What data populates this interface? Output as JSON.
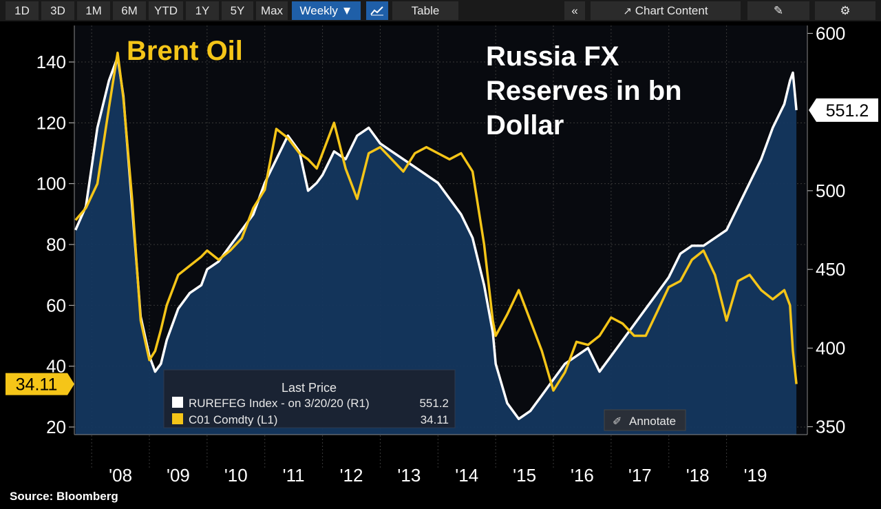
{
  "toolbar": {
    "ranges": [
      "1D",
      "3D",
      "1M",
      "6M",
      "YTD",
      "1Y",
      "5Y",
      "Max"
    ],
    "interval": "Weekly ▼",
    "table": "Table",
    "collapse": "«",
    "chart_content": "Chart Content",
    "edit_icon": "pencil-icon",
    "settings_icon": "gear-icon"
  },
  "annotate_label": "Annotate",
  "source": "Source:  Bloomberg",
  "colors": {
    "oil": "#f5c518",
    "reserves": "#ffffff",
    "fill": "#14375f",
    "background": "#000000"
  },
  "chart_data": {
    "type": "line",
    "labels": {
      "oil_title": "Brent Oil",
      "reserves_title": [
        "Russia FX",
        "Reserves in bn",
        "Dollar"
      ]
    },
    "x_ticks": [
      "'08",
      "'09",
      "'10",
      "'11",
      "'12",
      "'13",
      "'14",
      "'15",
      "'16",
      "'17",
      "'18",
      "'19"
    ],
    "xlim": [
      2007.7,
      2020.4
    ],
    "y_left": {
      "ticks": [
        20,
        40,
        60,
        80,
        100,
        120,
        140
      ],
      "range": [
        17.5,
        152
      ]
    },
    "y_right": {
      "ticks": [
        350,
        400,
        450,
        500,
        600
      ],
      "range": [
        345,
        605
      ]
    },
    "grid": true,
    "last_values": {
      "left": "34.11",
      "right": "551.2"
    },
    "legend": {
      "title": "Last Price",
      "entries": [
        {
          "name": "RUREFEG Index -   on 3/20/20  (R1)",
          "value": "551.2"
        },
        {
          "name": "C01 Comdty  (L1)",
          "value": "34.11"
        }
      ]
    },
    "series": [
      {
        "name": "RUREFEG Index",
        "axis": "right",
        "x": [
          2007.72,
          2007.9,
          2008.1,
          2008.3,
          2008.45,
          2008.55,
          2008.7,
          2008.85,
          2009.0,
          2009.1,
          2009.2,
          2009.3,
          2009.5,
          2009.7,
          2009.9,
          2010.0,
          2010.2,
          2010.4,
          2010.6,
          2010.8,
          2011.0,
          2011.2,
          2011.4,
          2011.6,
          2011.75,
          2011.9,
          2012.0,
          2012.2,
          2012.4,
          2012.6,
          2012.8,
          2013.0,
          2013.2,
          2013.4,
          2013.6,
          2013.8,
          2014.0,
          2014.2,
          2014.4,
          2014.6,
          2014.8,
          2014.95,
          2015.0,
          2015.2,
          2015.4,
          2015.6,
          2015.8,
          2016.0,
          2016.2,
          2016.4,
          2016.6,
          2016.8,
          2017.0,
          2017.2,
          2017.4,
          2017.6,
          2017.8,
          2018.0,
          2018.2,
          2018.4,
          2018.6,
          2018.8,
          2019.0,
          2019.2,
          2019.4,
          2019.6,
          2019.8,
          2020.0,
          2020.1,
          2020.15,
          2020.21
        ],
        "y": [
          475,
          490,
          540,
          570,
          585,
          560,
          490,
          420,
          395,
          385,
          390,
          405,
          425,
          435,
          440,
          450,
          455,
          465,
          475,
          485,
          505,
          520,
          535,
          525,
          500,
          505,
          510,
          525,
          520,
          535,
          540,
          530,
          525,
          520,
          515,
          510,
          505,
          495,
          485,
          470,
          440,
          410,
          390,
          365,
          355,
          360,
          370,
          380,
          390,
          395,
          400,
          385,
          395,
          405,
          415,
          425,
          435,
          445,
          460,
          465,
          465,
          470,
          475,
          490,
          505,
          520,
          540,
          555,
          570,
          575,
          551.2
        ]
      },
      {
        "name": "C01 Comdty",
        "axis": "left",
        "x": [
          2007.72,
          2007.9,
          2008.1,
          2008.3,
          2008.45,
          2008.55,
          2008.7,
          2008.85,
          2009.0,
          2009.1,
          2009.2,
          2009.3,
          2009.5,
          2009.7,
          2009.9,
          2010.0,
          2010.2,
          2010.4,
          2010.6,
          2010.8,
          2011.0,
          2011.2,
          2011.4,
          2011.6,
          2011.75,
          2011.9,
          2012.0,
          2012.2,
          2012.4,
          2012.6,
          2012.8,
          2013.0,
          2013.2,
          2013.4,
          2013.6,
          2013.8,
          2014.0,
          2014.2,
          2014.4,
          2014.6,
          2014.8,
          2014.95,
          2015.0,
          2015.2,
          2015.4,
          2015.6,
          2015.8,
          2016.0,
          2016.2,
          2016.4,
          2016.6,
          2016.8,
          2017.0,
          2017.2,
          2017.4,
          2017.6,
          2017.8,
          2018.0,
          2018.2,
          2018.4,
          2018.6,
          2018.8,
          2019.0,
          2019.2,
          2019.4,
          2019.6,
          2019.8,
          2020.0,
          2020.1,
          2020.15,
          2020.21
        ],
        "y": [
          88,
          92,
          100,
          125,
          143,
          128,
          95,
          55,
          42,
          45,
          52,
          60,
          70,
          73,
          76,
          78,
          75,
          78,
          82,
          92,
          98,
          118,
          115,
          110,
          108,
          105,
          110,
          120,
          105,
          95,
          110,
          112,
          108,
          104,
          110,
          112,
          110,
          108,
          110,
          104,
          80,
          55,
          50,
          57,
          65,
          55,
          45,
          32,
          38,
          48,
          47,
          50,
          56,
          54,
          50,
          50,
          58,
          66,
          68,
          75,
          78,
          70,
          55,
          68,
          70,
          65,
          62,
          65,
          60,
          45,
          34.11
        ]
      }
    ]
  }
}
